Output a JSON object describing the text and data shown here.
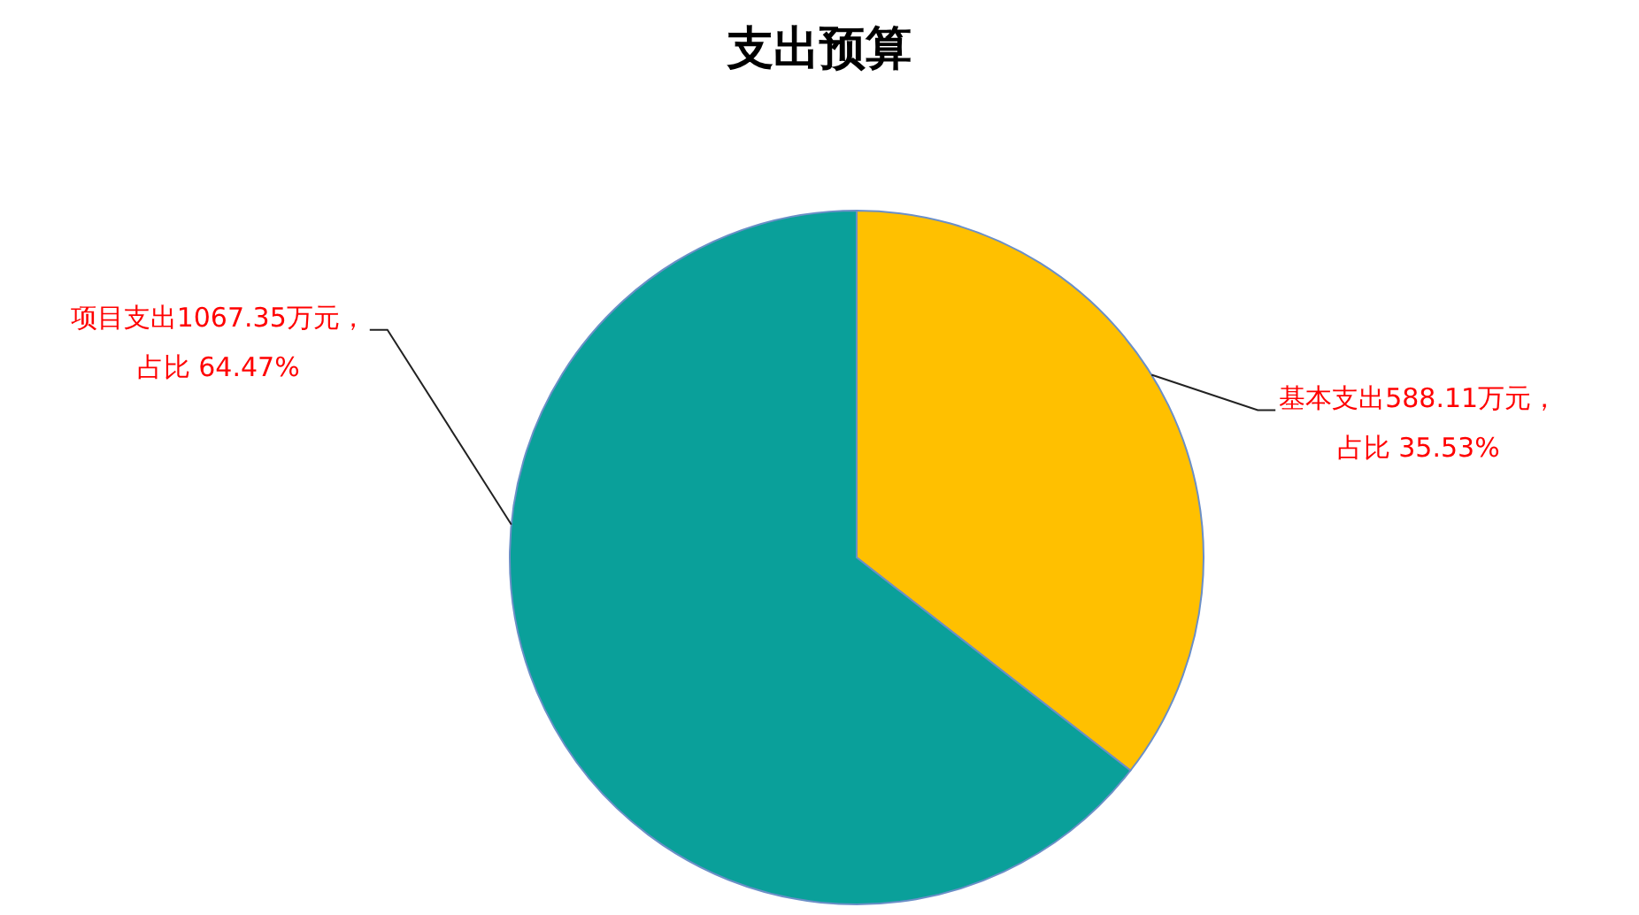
{
  "chart_data": {
    "type": "pie",
    "title": "支出预算",
    "categories": [
      null,
      null
    ],
    "values": [
      588.11,
      1067.35
    ],
    "colors": [
      "#ffc000",
      "#0aa09a"
    ],
    "value_labels": [
      "基本支出588.11万元，",
      "项目支出1067.35万元，"
    ],
    "annotations": [
      "占比 35.53%",
      "占比 64.47%"
    ]
  }
}
